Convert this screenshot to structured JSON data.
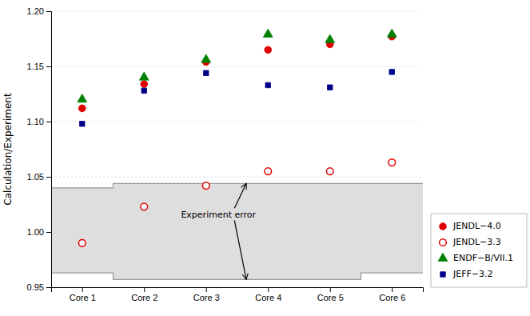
{
  "chart_data": {
    "type": "scatter",
    "categories": [
      "Core 1",
      "Core 2",
      "Core 3",
      "Core 4",
      "Core 5",
      "Core 6"
    ],
    "series": [
      {
        "name": "JENDL−4.0",
        "color": "#e00000",
        "marker": "circle",
        "values": [
          1.112,
          1.134,
          1.154,
          1.165,
          1.17,
          1.177
        ]
      },
      {
        "name": "JENDL−3.3",
        "color": "#e00000",
        "marker": "circle-open",
        "values": [
          0.99,
          1.023,
          1.042,
          1.055,
          1.055,
          1.063
        ]
      },
      {
        "name": "ENDF−B/VII.1",
        "color": "#008000",
        "marker": "triangle",
        "values": [
          1.12,
          1.14,
          1.156,
          1.179,
          1.174,
          1.179
        ]
      },
      {
        "name": "JEFF−3.2",
        "color": "#00008b",
        "marker": "square",
        "values": [
          1.098,
          1.128,
          1.144,
          1.133,
          1.131,
          1.145
        ]
      }
    ],
    "band": {
      "upper": [
        1.04,
        1.044,
        1.044,
        1.044,
        1.044,
        1.044
      ],
      "lower": [
        0.963,
        0.957,
        0.957,
        0.957,
        0.957,
        0.963
      ],
      "color": "#c8c8c8"
    },
    "annotations": [
      "Experiment error"
    ],
    "ylabel": "Calculation/Experiment",
    "ylim": [
      0.95,
      1.2
    ],
    "yticks": [
      0.95,
      {
        "value": 1.0,
        "label": "1.00"
      },
      1.05,
      {
        "value": 1.1,
        "label": "1.10"
      },
      1.15,
      {
        "value": 1.2,
        "label": "1.20"
      }
    ],
    "grid": true,
    "legend": "lower right"
  }
}
